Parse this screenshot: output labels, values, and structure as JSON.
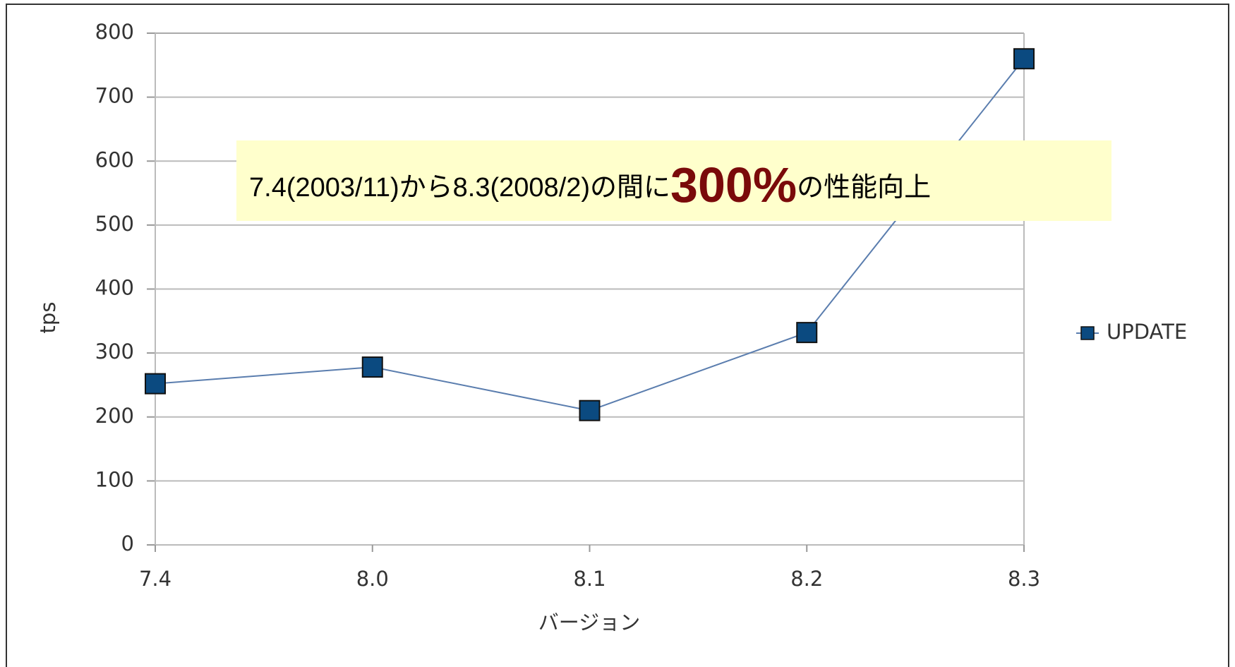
{
  "chart_data": {
    "type": "line",
    "title": null,
    "x_label": "バージョン",
    "y_label": "tps",
    "categories": [
      "7.4",
      "8.0",
      "8.1",
      "8.2",
      "8.3"
    ],
    "series": [
      {
        "name": "UPDATE",
        "color": "#0b4a80",
        "values": [
          252,
          278,
          210,
          332,
          760
        ]
      }
    ],
    "ylim": [
      0,
      800
    ],
    "yticks": [
      0,
      100,
      200,
      300,
      400,
      500,
      600,
      700,
      800
    ],
    "grid": true,
    "legend": "right",
    "annotation": [
      "7.4(2003/11)から8.3(2008/2)の間に",
      "300%",
      "の性能向上"
    ]
  }
}
